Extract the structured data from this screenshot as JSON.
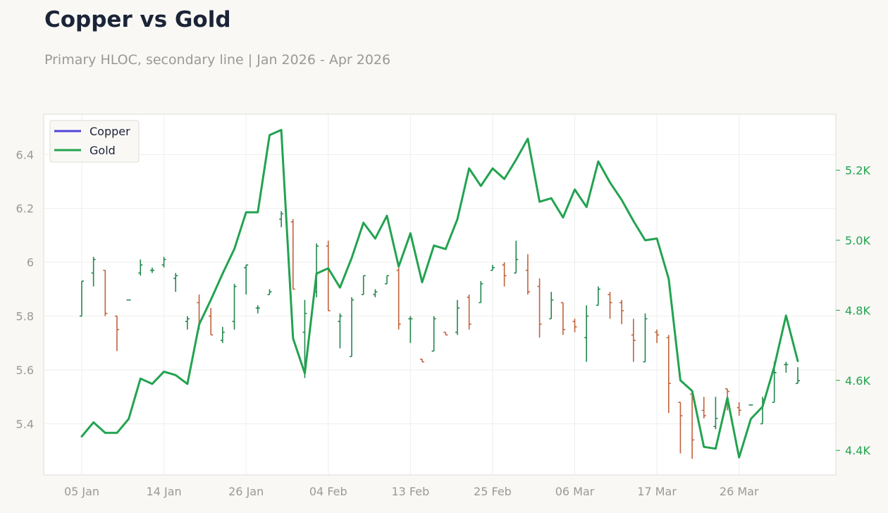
{
  "header": {
    "title": "Copper vs Gold",
    "subtitle": "Primary HLOC, secondary line | Jan 2026 - Apr 2026"
  },
  "colors": {
    "up": "#22874d",
    "down": "#c0623d",
    "gold_line": "#22a350",
    "copper_legend": "#5145d8",
    "grid": "#eeeeec",
    "axis_text": "#9a9995",
    "secondary_axis_text": "#22a350"
  },
  "chart_data": {
    "type": "line",
    "legend": {
      "position": "top-left",
      "entries": [
        "Copper",
        "Gold"
      ]
    },
    "grid": true,
    "x_ticks": [
      {
        "index": 0,
        "label": "05 Jan"
      },
      {
        "index": 7,
        "label": "14 Jan"
      },
      {
        "index": 14,
        "label": "26 Jan"
      },
      {
        "index": 21,
        "label": "04 Feb"
      },
      {
        "index": 28,
        "label": "13 Feb"
      },
      {
        "index": 35,
        "label": "25 Feb"
      },
      {
        "index": 42,
        "label": "06 Mar"
      },
      {
        "index": 49,
        "label": "17 Mar"
      },
      {
        "index": 56,
        "label": "26 Mar"
      }
    ],
    "primary_axis": {
      "ylim": [
        5.21,
        6.55
      ],
      "ticks": [
        5.4,
        5.6,
        5.8,
        6.0,
        6.2,
        6.4
      ],
      "tick_labels": [
        "5.4",
        "5.6",
        "5.8",
        "6",
        "6.2",
        "6.4"
      ]
    },
    "secondary_axis": {
      "ylim": [
        4330,
        5360
      ],
      "ticks": [
        4400,
        4600,
        4800,
        5000,
        5200
      ],
      "tick_labels": [
        "4.4K",
        "4.6K",
        "4.8K",
        "5.0K",
        "5.2K"
      ]
    },
    "series": [
      {
        "name": "Copper",
        "type": "hloc",
        "ohlc": [
          [
            5.8,
            5.93,
            5.8,
            5.93
          ],
          [
            5.96,
            6.02,
            5.91,
            6.01
          ],
          [
            5.97,
            5.97,
            5.8,
            5.81
          ],
          [
            5.8,
            5.8,
            5.67,
            5.75
          ],
          [
            5.86,
            5.86,
            5.86,
            5.86
          ],
          [
            5.96,
            6.01,
            5.95,
            5.99
          ],
          [
            5.97,
            5.98,
            5.96,
            5.97
          ],
          [
            5.99,
            6.02,
            5.98,
            6.01
          ],
          [
            5.94,
            5.96,
            5.89,
            5.95
          ],
          [
            5.78,
            5.8,
            5.75,
            5.79
          ],
          [
            5.85,
            5.88,
            5.75,
            5.78
          ],
          [
            5.8,
            5.83,
            5.73,
            5.73
          ],
          [
            5.71,
            5.76,
            5.7,
            5.74
          ],
          [
            5.78,
            5.92,
            5.75,
            5.91
          ],
          [
            5.98,
            5.99,
            5.88,
            5.99
          ],
          [
            5.83,
            5.84,
            5.81,
            5.83
          ],
          [
            5.88,
            5.9,
            5.88,
            5.89
          ],
          [
            6.16,
            6.19,
            6.13,
            6.18
          ],
          [
            6.15,
            6.16,
            5.9,
            5.9
          ],
          [
            5.74,
            5.86,
            5.57,
            5.81
          ],
          [
            5.89,
            6.07,
            5.87,
            6.06
          ],
          [
            6.06,
            6.08,
            5.82,
            5.82
          ],
          [
            5.78,
            5.81,
            5.68,
            5.8
          ],
          [
            5.65,
            5.87,
            5.65,
            5.86
          ],
          [
            5.88,
            5.95,
            5.88,
            5.95
          ],
          [
            5.88,
            5.9,
            5.87,
            5.89
          ],
          [
            5.92,
            5.95,
            5.92,
            5.95
          ],
          [
            5.97,
            5.98,
            5.75,
            5.77
          ],
          [
            5.79,
            5.8,
            5.7,
            5.79
          ],
          [
            5.64,
            5.64,
            5.63,
            5.63
          ],
          [
            5.67,
            5.8,
            5.67,
            5.79
          ],
          [
            5.74,
            5.74,
            5.73,
            5.73
          ],
          [
            5.74,
            5.86,
            5.73,
            5.83
          ],
          [
            5.87,
            5.88,
            5.75,
            5.77
          ],
          [
            5.85,
            5.93,
            5.85,
            5.92
          ],
          [
            5.97,
            5.99,
            5.97,
            5.98
          ],
          [
            5.99,
            6.0,
            5.91,
            5.95
          ],
          [
            5.96,
            6.08,
            5.96,
            6.01
          ],
          [
            5.97,
            6.03,
            5.88,
            5.89
          ],
          [
            5.91,
            5.94,
            5.72,
            5.77
          ],
          [
            5.79,
            5.89,
            5.79,
            5.86
          ],
          [
            5.85,
            5.85,
            5.73,
            5.75
          ],
          [
            5.78,
            5.79,
            5.74,
            5.76
          ],
          [
            5.72,
            5.84,
            5.63,
            5.8
          ],
          [
            5.84,
            5.91,
            5.84,
            5.9
          ],
          [
            5.88,
            5.89,
            5.79,
            5.85
          ],
          [
            5.85,
            5.86,
            5.77,
            5.82
          ],
          [
            5.73,
            5.79,
            5.63,
            5.71
          ],
          [
            5.63,
            5.81,
            5.63,
            5.79
          ],
          [
            5.74,
            5.75,
            5.7,
            5.73
          ],
          [
            5.72,
            5.73,
            5.44,
            5.55
          ],
          [
            5.48,
            5.48,
            5.29,
            5.43
          ],
          [
            5.51,
            5.52,
            5.27,
            5.34
          ],
          [
            5.45,
            5.5,
            5.42,
            5.43
          ],
          [
            5.39,
            5.5,
            5.38,
            5.42
          ],
          [
            5.53,
            5.53,
            5.45,
            5.52
          ],
          [
            5.46,
            5.48,
            5.43,
            5.45
          ],
          [
            5.47,
            5.47,
            5.47,
            5.47
          ],
          [
            5.4,
            5.5,
            5.4,
            5.49
          ],
          [
            5.48,
            5.63,
            5.48,
            5.59
          ],
          [
            5.62,
            5.63,
            5.59,
            5.62
          ],
          [
            5.55,
            5.61,
            5.55,
            5.56
          ]
        ]
      },
      {
        "name": "Gold",
        "type": "line",
        "axis": "secondary",
        "values": [
          4440,
          4480,
          4450,
          4450,
          4490,
          4605,
          4590,
          4625,
          4615,
          4590,
          4760,
          4830,
          4905,
          4975,
          5080,
          5080,
          5300,
          5315,
          4720,
          4620,
          4905,
          4920,
          4865,
          4950,
          5050,
          5005,
          5070,
          4925,
          5020,
          4880,
          4985,
          4975,
          5060,
          5205,
          5155,
          5205,
          5175,
          5230,
          5290,
          5110,
          5120,
          5065,
          5145,
          5095,
          5225,
          5165,
          5115,
          5055,
          5000,
          5005,
          4890,
          4600,
          4570,
          4410,
          4405,
          4550,
          4380,
          4490,
          4525,
          4640,
          4785,
          4655
        ]
      }
    ]
  }
}
